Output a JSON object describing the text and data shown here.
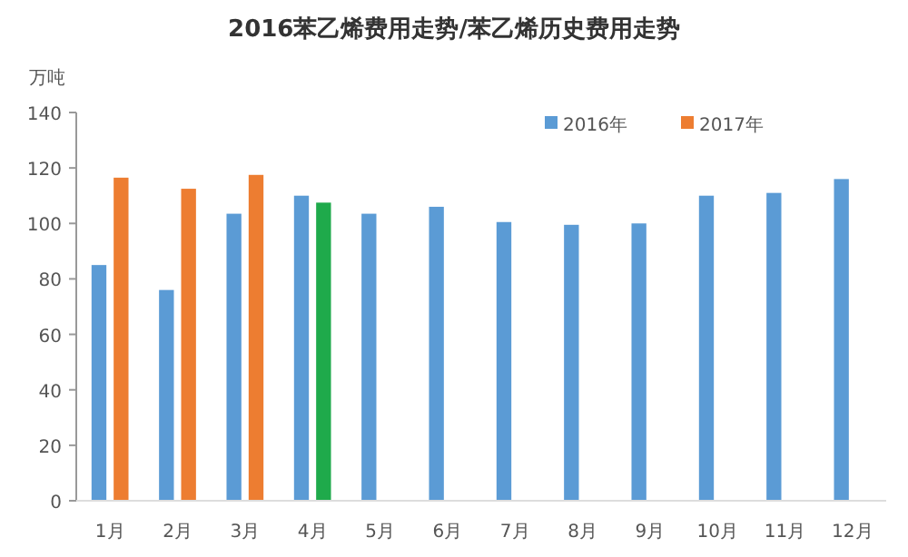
{
  "chart_data": {
    "type": "bar",
    "title": "2016苯乙烯费用走势/苯乙烯历史费用走势",
    "ylabel": "万吨",
    "categories": [
      "1月",
      "2月",
      "3月",
      "4月",
      "5月",
      "6月",
      "7月",
      "8月",
      "9月",
      "10月",
      "11月",
      "12月"
    ],
    "series": [
      {
        "name": "2016年",
        "color": "#5b9bd5",
        "values": [
          85,
          76,
          103.5,
          110,
          103.5,
          106,
          100.5,
          99.5,
          100,
          110,
          111,
          116
        ]
      },
      {
        "name": "2017年",
        "color": "#ed7d31",
        "colors": [
          "#ed7d31",
          "#ed7d31",
          "#ed7d31",
          "#1faa4b",
          null,
          null,
          null,
          null,
          null,
          null,
          null,
          null
        ],
        "values": [
          116.5,
          112.5,
          117.5,
          107.5,
          null,
          null,
          null,
          null,
          null,
          null,
          null,
          null
        ]
      }
    ],
    "ylim": [
      0,
      140
    ],
    "yticks": [
      0,
      20,
      40,
      60,
      80,
      100,
      120,
      140
    ],
    "grid": false,
    "legend": "top right"
  }
}
